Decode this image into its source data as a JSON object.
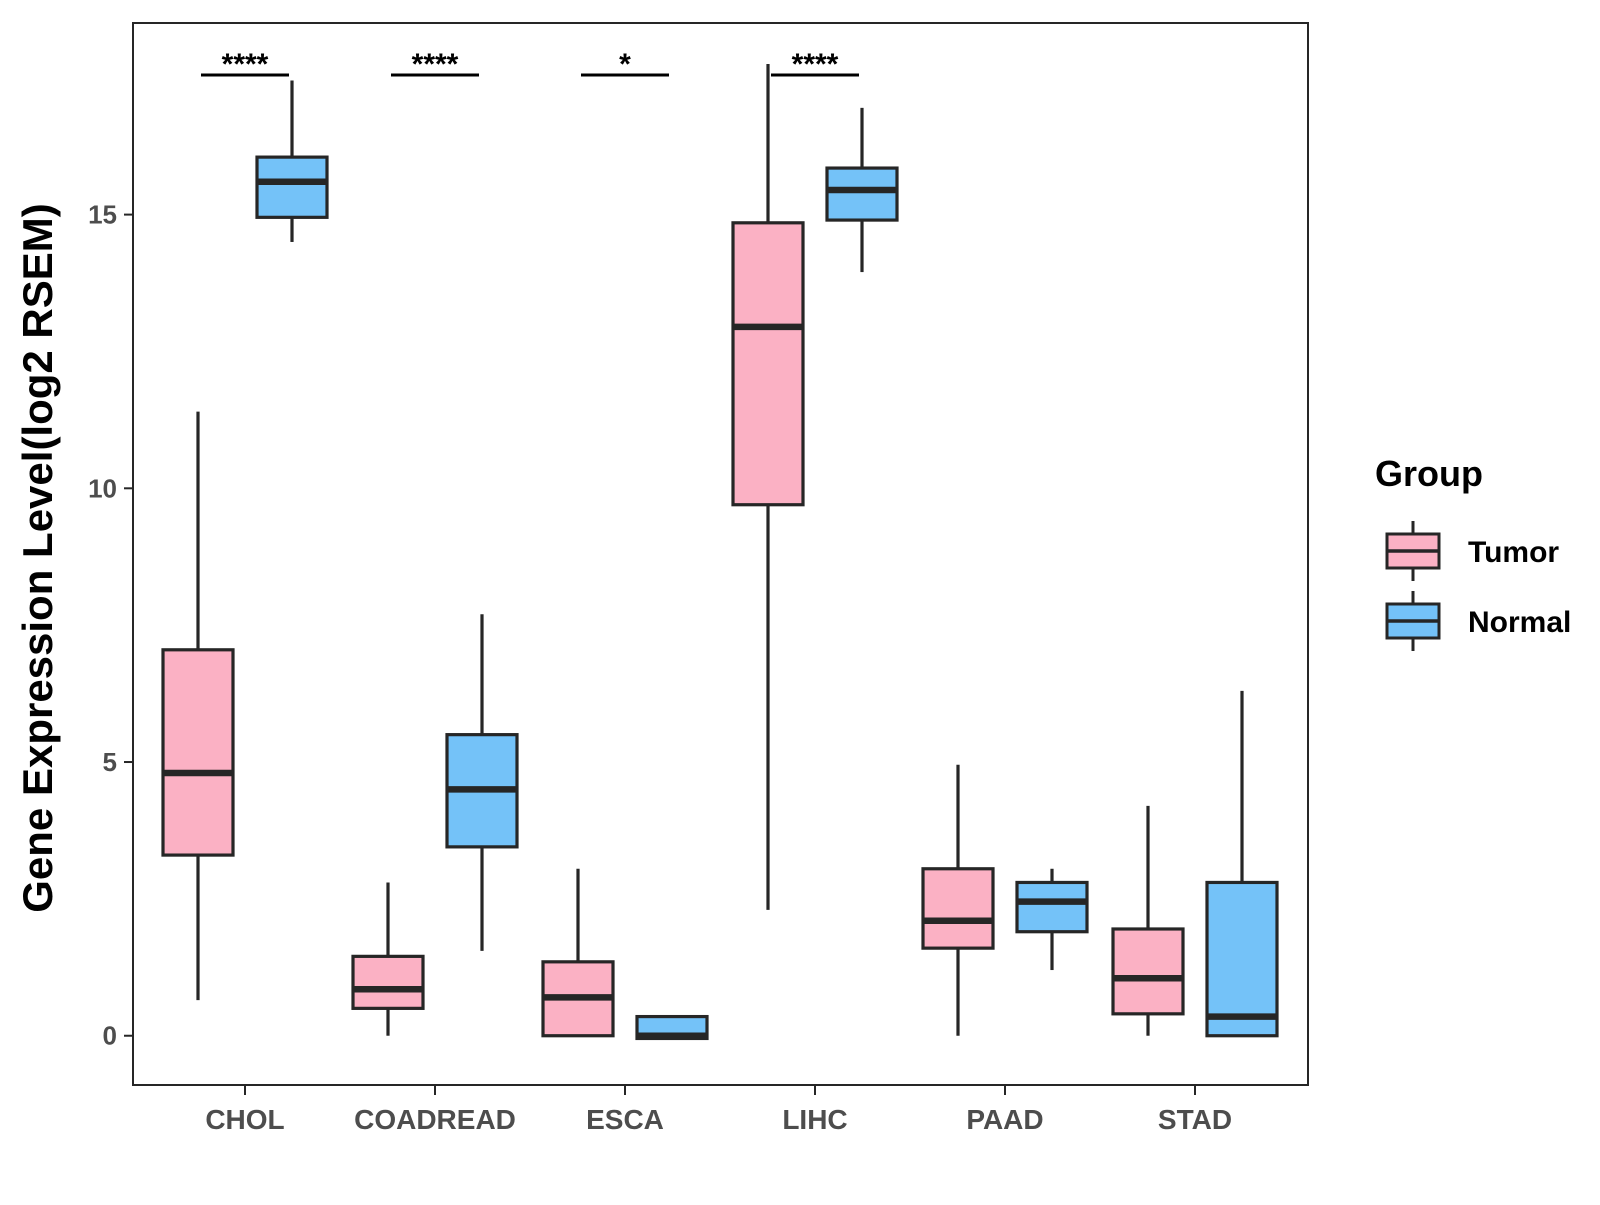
{
  "chart_data": {
    "type": "boxplot",
    "title": "",
    "xlabel": "",
    "ylabel": "Gene Expression Level(log2 RSEM)",
    "ylim": [
      -0.9,
      18.5
    ],
    "yticks": [
      0,
      5,
      10,
      15
    ],
    "grid": false,
    "categories": [
      "CHOL",
      "COADREAD",
      "ESCA",
      "LIHC",
      "PAAD",
      "STAD"
    ],
    "legend": {
      "title": "Group",
      "placement": "right",
      "entries": [
        {
          "name": "Tumor",
          "color": "#FBB1C4"
        },
        {
          "name": "Normal",
          "color": "#74C2F8"
        }
      ]
    },
    "series": [
      {
        "name": "Tumor",
        "color": "#FBB1C4",
        "boxes": [
          {
            "category": "CHOL",
            "min": 0.65,
            "q1": 3.3,
            "median": 4.8,
            "q3": 7.05,
            "max": 11.4
          },
          {
            "category": "COADREAD",
            "min": 0.0,
            "q1": 0.5,
            "median": 0.85,
            "q3": 1.45,
            "max": 2.8
          },
          {
            "category": "ESCA",
            "min": 0.0,
            "q1": 0.0,
            "median": 0.7,
            "q3": 1.35,
            "max": 3.05
          },
          {
            "category": "LIHC",
            "min": 2.3,
            "q1": 9.7,
            "median": 12.95,
            "q3": 14.85,
            "max": 17.75
          },
          {
            "category": "PAAD",
            "min": 0.0,
            "q1": 1.6,
            "median": 2.1,
            "q3": 3.05,
            "max": 4.95
          },
          {
            "category": "STAD",
            "min": 0.0,
            "q1": 0.4,
            "median": 1.05,
            "q3": 1.95,
            "max": 4.2
          }
        ]
      },
      {
        "name": "Normal",
        "color": "#74C2F8",
        "boxes": [
          {
            "category": "CHOL",
            "min": 14.5,
            "q1": 14.95,
            "median": 15.6,
            "q3": 16.05,
            "max": 17.45
          },
          {
            "category": "COADREAD",
            "min": 1.55,
            "q1": 3.45,
            "median": 4.5,
            "q3": 5.5,
            "max": 7.7
          },
          {
            "category": "ESCA",
            "min": -0.05,
            "q1": -0.05,
            "median": 0.0,
            "q3": 0.35,
            "max": 0.35
          },
          {
            "category": "LIHC",
            "min": 13.95,
            "q1": 14.9,
            "median": 15.45,
            "q3": 15.85,
            "max": 16.95
          },
          {
            "category": "PAAD",
            "min": 1.2,
            "q1": 1.9,
            "median": 2.45,
            "q3": 2.8,
            "max": 3.05
          },
          {
            "category": "STAD",
            "min": 0.0,
            "q1": 0.0,
            "median": 0.35,
            "q3": 2.8,
            "max": 6.3
          }
        ]
      }
    ],
    "significance": [
      {
        "category": "CHOL",
        "label": "****"
      },
      {
        "category": "COADREAD",
        "label": "****"
      },
      {
        "category": "ESCA",
        "label": "*"
      },
      {
        "category": "LIHC",
        "label": "****"
      }
    ]
  }
}
